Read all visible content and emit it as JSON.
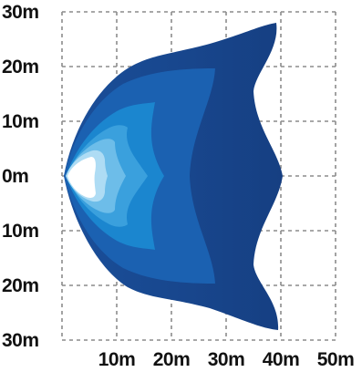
{
  "chart_data": {
    "type": "area",
    "title": "",
    "xlabel": "",
    "ylabel": "",
    "x_ticks": [
      "10m",
      "20m",
      "30m",
      "40m",
      "50m"
    ],
    "y_ticks": [
      "30m",
      "20m",
      "10m",
      "0m",
      "10m",
      "20m",
      "30m"
    ],
    "xlim": [
      0,
      50
    ],
    "ylim": [
      -30,
      30
    ],
    "grid": true,
    "colors": {
      "outer": "#1a4f9a",
      "outer_gradient_end": "#163f82",
      "band2": "#1b61b1",
      "band3": "#1b86cf",
      "band4": "#3aa0dd",
      "band5": "#6dbde9",
      "band6": "#aedcf4",
      "core": "#ffffff"
    }
  }
}
